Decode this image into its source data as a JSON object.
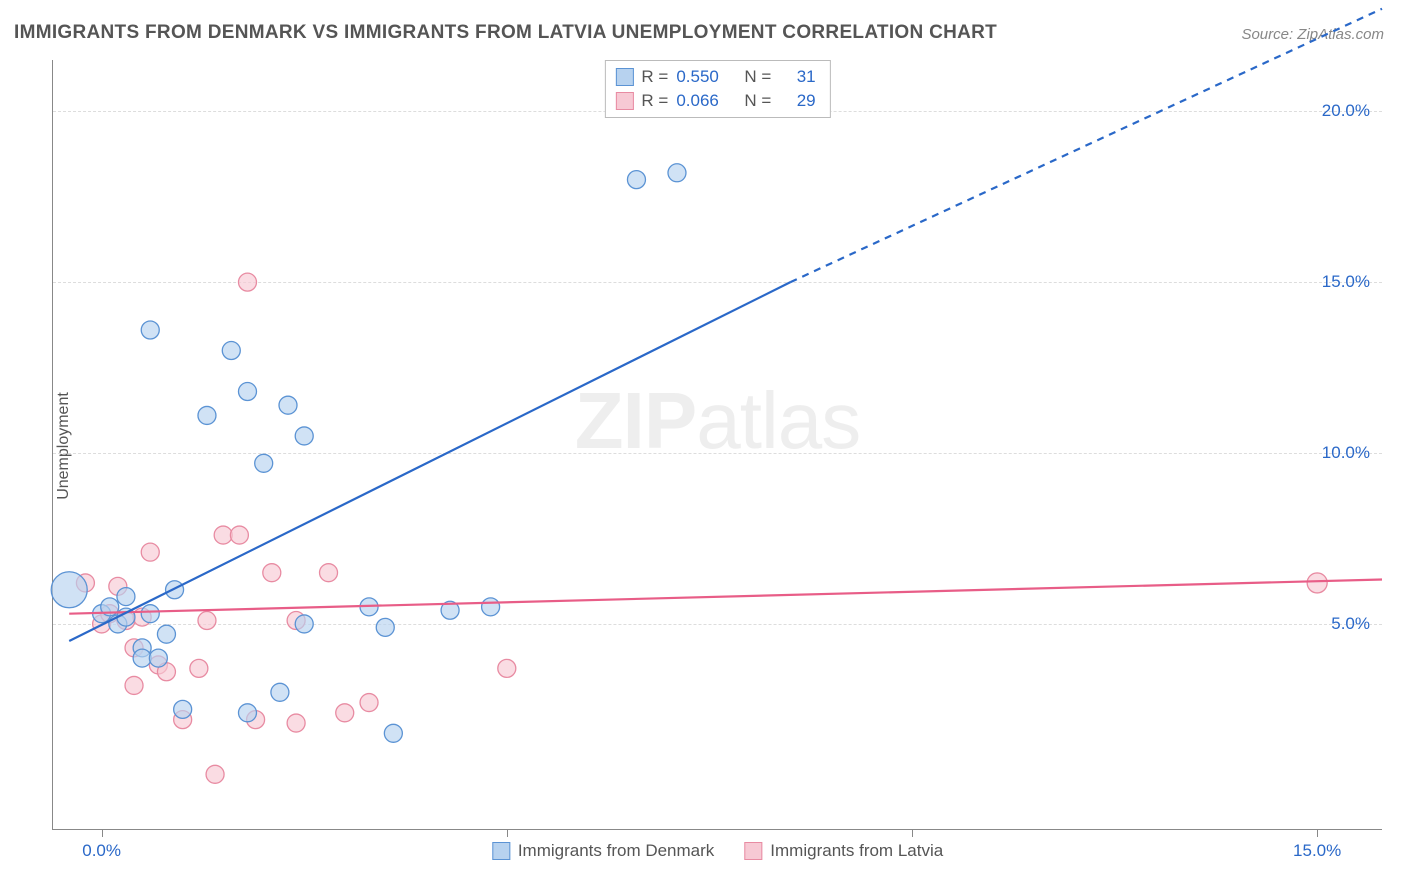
{
  "title": "IMMIGRANTS FROM DENMARK VS IMMIGRANTS FROM LATVIA UNEMPLOYMENT CORRELATION CHART",
  "source": "Source: ZipAtlas.com",
  "ylabel": "Unemployment",
  "watermark": {
    "bold": "ZIP",
    "rest": "atlas"
  },
  "colors": {
    "blue_fill": "#b7d2ef",
    "blue_stroke": "#5b93d4",
    "blue_line": "#2a68c8",
    "pink_fill": "#f7c9d4",
    "pink_stroke": "#e88ba2",
    "pink_line": "#e85d87",
    "text": "#555555",
    "value_blue": "#2a68c8",
    "grid": "#dddddd",
    "axis": "#888888"
  },
  "chart": {
    "type": "scatter",
    "x_range": [
      -0.6,
      15.8
    ],
    "y_range": [
      -1.0,
      21.5
    ],
    "y_gridlines": [
      5,
      10,
      15,
      20
    ],
    "y_tick_labels": [
      "5.0%",
      "10.0%",
      "15.0%",
      "20.0%"
    ],
    "x_ticks": [
      0,
      5,
      10,
      15
    ],
    "x_tick_labels": [
      "0.0%",
      "15.0%"
    ],
    "x_tick_label_positions": [
      0,
      15
    ],
    "marker_radius_base": 9,
    "line_width": 2.2,
    "font_size_ticks": 17,
    "font_size_title": 19
  },
  "stat_legend": {
    "rows": [
      {
        "series": "A",
        "R_label": "R =",
        "R_value": "0.550",
        "N_label": "N =",
        "N_value": "31"
      },
      {
        "series": "B",
        "R_label": "R =",
        "R_value": "0.066",
        "N_label": "N =",
        "N_value": "29"
      }
    ]
  },
  "bottom_legend": {
    "items": [
      {
        "series": "A",
        "label": "Immigrants from Denmark"
      },
      {
        "series": "B",
        "label": "Immigrants from Latvia"
      }
    ]
  },
  "series": {
    "A": {
      "label": "Immigrants from Denmark",
      "color_fill": "#b7d2ef",
      "color_stroke": "#5b93d4",
      "line_color": "#2a68c8",
      "regression": {
        "x1": -0.4,
        "y1": 4.5,
        "x2": 8.5,
        "y2": 15.0,
        "dash_from_x": 8.5,
        "x3": 15.8,
        "y3": 23.0
      },
      "points": [
        {
          "x": -0.4,
          "y": 6.0,
          "r": 18
        },
        {
          "x": 0.0,
          "y": 5.3,
          "r": 9
        },
        {
          "x": 0.1,
          "y": 5.5,
          "r": 9
        },
        {
          "x": 0.2,
          "y": 5.0,
          "r": 9
        },
        {
          "x": 0.3,
          "y": 5.8,
          "r": 9
        },
        {
          "x": 0.3,
          "y": 5.2,
          "r": 9
        },
        {
          "x": 0.5,
          "y": 4.3,
          "r": 9
        },
        {
          "x": 0.5,
          "y": 4.0,
          "r": 9
        },
        {
          "x": 0.6,
          "y": 13.6,
          "r": 9
        },
        {
          "x": 0.6,
          "y": 5.3,
          "r": 9
        },
        {
          "x": 0.7,
          "y": 4.0,
          "r": 9
        },
        {
          "x": 0.8,
          "y": 4.7,
          "r": 9
        },
        {
          "x": 0.9,
          "y": 6.0,
          "r": 9
        },
        {
          "x": 1.0,
          "y": 2.5,
          "r": 9
        },
        {
          "x": 1.3,
          "y": 11.1,
          "r": 9
        },
        {
          "x": 1.6,
          "y": 13.0,
          "r": 9
        },
        {
          "x": 1.8,
          "y": 2.4,
          "r": 9
        },
        {
          "x": 1.8,
          "y": 11.8,
          "r": 9
        },
        {
          "x": 2.0,
          "y": 9.7,
          "r": 9
        },
        {
          "x": 2.2,
          "y": 3.0,
          "r": 9
        },
        {
          "x": 2.3,
          "y": 11.4,
          "r": 9
        },
        {
          "x": 2.5,
          "y": 10.5,
          "r": 9
        },
        {
          "x": 2.5,
          "y": 5.0,
          "r": 9
        },
        {
          "x": 3.3,
          "y": 5.5,
          "r": 9
        },
        {
          "x": 3.5,
          "y": 4.9,
          "r": 9
        },
        {
          "x": 3.6,
          "y": 1.8,
          "r": 9
        },
        {
          "x": 4.3,
          "y": 5.4,
          "r": 9
        },
        {
          "x": 4.8,
          "y": 5.5,
          "r": 9
        },
        {
          "x": 6.6,
          "y": 18.0,
          "r": 9
        },
        {
          "x": 7.1,
          "y": 18.2,
          "r": 9
        }
      ]
    },
    "B": {
      "label": "Immigrants from Latvia",
      "color_fill": "#f7c9d4",
      "color_stroke": "#e88ba2",
      "line_color": "#e85d87",
      "regression": {
        "x1": -0.4,
        "y1": 5.3,
        "x2": 15.8,
        "y2": 6.3,
        "dash_from_x": 999,
        "x3": 15.8,
        "y3": 6.3
      },
      "points": [
        {
          "x": -0.2,
          "y": 6.2,
          "r": 9
        },
        {
          "x": 0.0,
          "y": 5.0,
          "r": 9
        },
        {
          "x": 0.1,
          "y": 5.3,
          "r": 9
        },
        {
          "x": 0.2,
          "y": 6.1,
          "r": 9
        },
        {
          "x": 0.3,
          "y": 5.1,
          "r": 9
        },
        {
          "x": 0.4,
          "y": 3.2,
          "r": 9
        },
        {
          "x": 0.4,
          "y": 4.3,
          "r": 9
        },
        {
          "x": 0.5,
          "y": 5.2,
          "r": 9
        },
        {
          "x": 0.6,
          "y": 7.1,
          "r": 9
        },
        {
          "x": 0.7,
          "y": 3.8,
          "r": 9
        },
        {
          "x": 0.8,
          "y": 3.6,
          "r": 9
        },
        {
          "x": 1.0,
          "y": 2.2,
          "r": 9
        },
        {
          "x": 1.2,
          "y": 3.7,
          "r": 9
        },
        {
          "x": 1.3,
          "y": 5.1,
          "r": 9
        },
        {
          "x": 1.4,
          "y": 0.6,
          "r": 9
        },
        {
          "x": 1.5,
          "y": 7.6,
          "r": 9
        },
        {
          "x": 1.7,
          "y": 7.6,
          "r": 9
        },
        {
          "x": 1.8,
          "y": 15.0,
          "r": 9
        },
        {
          "x": 1.9,
          "y": 2.2,
          "r": 9
        },
        {
          "x": 2.1,
          "y": 6.5,
          "r": 9
        },
        {
          "x": 2.4,
          "y": 2.1,
          "r": 9
        },
        {
          "x": 2.4,
          "y": 5.1,
          "r": 9
        },
        {
          "x": 2.8,
          "y": 6.5,
          "r": 9
        },
        {
          "x": 3.0,
          "y": 2.4,
          "r": 9
        },
        {
          "x": 3.3,
          "y": 2.7,
          "r": 9
        },
        {
          "x": 5.0,
          "y": 3.7,
          "r": 9
        },
        {
          "x": 15.0,
          "y": 6.2,
          "r": 10
        }
      ]
    }
  }
}
